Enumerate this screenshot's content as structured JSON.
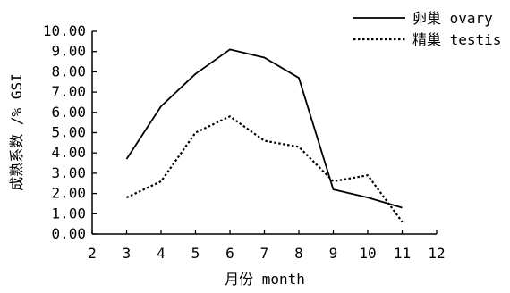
{
  "chart_data": {
    "type": "line",
    "title": "",
    "xlabel": "月份 month",
    "ylabel": "成熟系数 /% GSI",
    "xlim": [
      2,
      12
    ],
    "ylim": [
      0,
      10
    ],
    "x_ticks": [
      "2",
      "3",
      "4",
      "5",
      "6",
      "7",
      "8",
      "9",
      "10",
      "11",
      "12"
    ],
    "y_ticks": [
      "0.00",
      "1.00",
      "2.00",
      "3.00",
      "4.00",
      "5.00",
      "6.00",
      "7.00",
      "8.00",
      "9.00",
      "10.00"
    ],
    "grid": false,
    "legend_position": "top-right",
    "series": [
      {
        "name": "卵巢 ovary",
        "style": "solid",
        "color": "#000000",
        "x": [
          3,
          4,
          5,
          6,
          7,
          8,
          9,
          10,
          11
        ],
        "values": [
          3.7,
          6.3,
          7.9,
          9.1,
          8.7,
          7.7,
          2.2,
          1.8,
          1.3
        ]
      },
      {
        "name": "精巢 testis",
        "style": "dotted",
        "color": "#000000",
        "x": [
          3,
          4,
          5,
          6,
          7,
          8,
          9,
          10,
          11
        ],
        "values": [
          1.8,
          2.6,
          5.0,
          5.8,
          4.6,
          4.3,
          2.6,
          2.9,
          0.6
        ]
      }
    ]
  }
}
